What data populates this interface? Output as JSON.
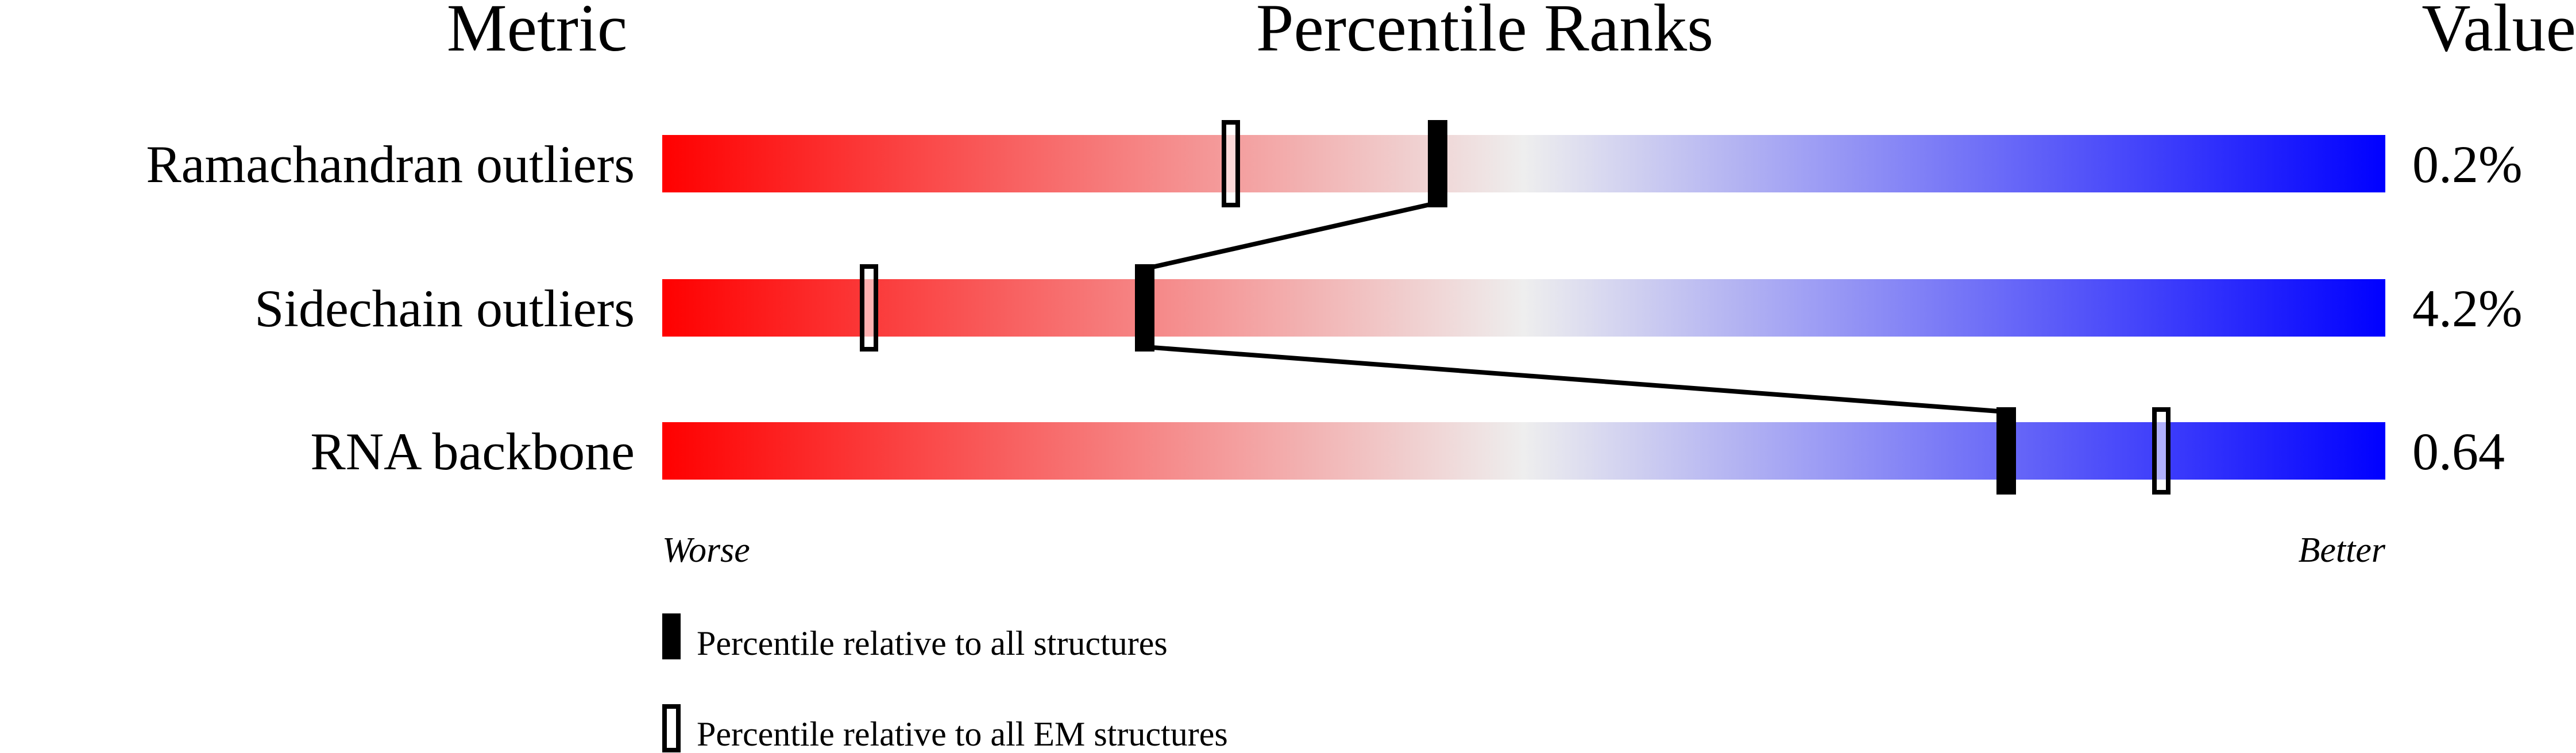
{
  "chart_data": {
    "type": "percentile-ranks",
    "headers": {
      "metric": "Metric",
      "title": "Percentile Ranks",
      "value": "Value"
    },
    "xlim": [
      0,
      100
    ],
    "axis_ends": {
      "left": "Worse",
      "right": "Better"
    },
    "gradient_colors": [
      "#ff0000",
      "#eeeeee",
      "#0000ff"
    ],
    "metrics": [
      {
        "name": "Ramachandran outliers",
        "value": "0.2%",
        "percentile_all": 45,
        "percentile_em": 33
      },
      {
        "name": "Sidechain outliers",
        "value": "4.2%",
        "percentile_all": 28,
        "percentile_em": 12
      },
      {
        "name": "RNA backbone",
        "value": "0.64",
        "percentile_all": 78,
        "percentile_em": 87
      }
    ],
    "legend": [
      {
        "marker": "filled",
        "label": "Percentile relative to all structures"
      },
      {
        "marker": "open",
        "label": "Percentile relative to all EM structures"
      }
    ]
  }
}
